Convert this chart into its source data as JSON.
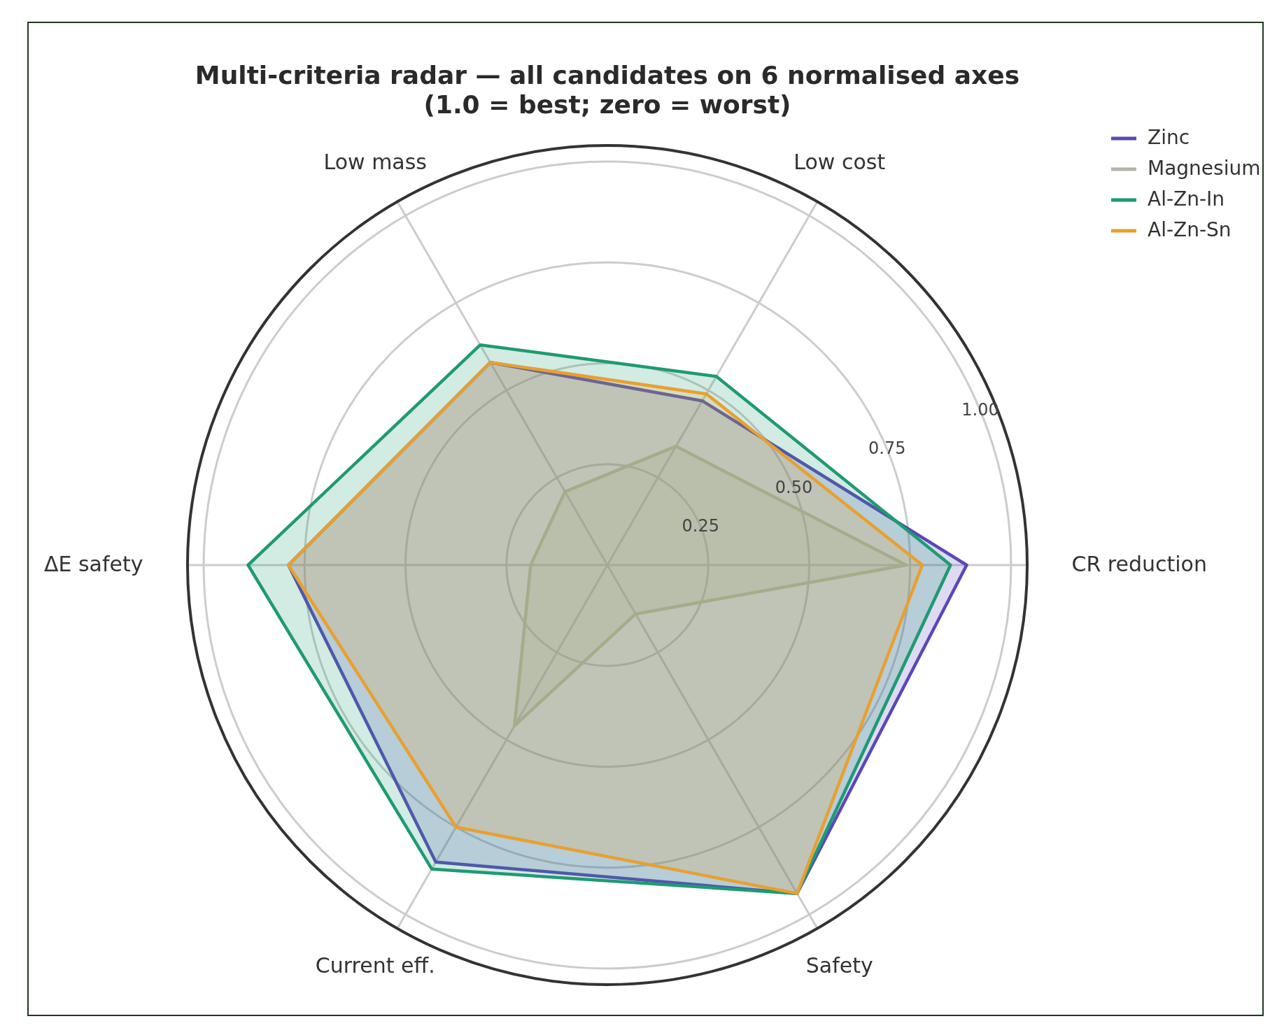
{
  "chart_data": {
    "type": "radar",
    "title": "Multi-criteria radar — all candidates on 6 normalised axes\n(1.0 = best; zero = worst)",
    "categories": [
      "Low cost",
      "CR reduction",
      "Safety",
      "Current eff.",
      "ΔE safety",
      "Low mass"
    ],
    "series": [
      {
        "name": "Zinc",
        "color": "#5a48b8",
        "values": [
          0.47,
          0.89,
          0.94,
          0.85,
          0.79,
          0.58
        ]
      },
      {
        "name": "Magnesium",
        "color": "#b4b4aa",
        "values": [
          0.34,
          0.74,
          0.14,
          0.46,
          0.19,
          0.21
        ]
      },
      {
        "name": "Al-Zn-In",
        "color": "#1f9a72",
        "values": [
          0.54,
          0.85,
          0.94,
          0.87,
          0.89,
          0.63
        ]
      },
      {
        "name": "Al-Zn-Sn",
        "color": "#e8a030",
        "values": [
          0.49,
          0.78,
          0.94,
          0.75,
          0.79,
          0.58
        ]
      }
    ],
    "ylim": [
      0,
      1.04
    ],
    "yticks": [
      0.25,
      {
        "value": 0.5,
        "label": "0.50"
      },
      0.75,
      {
        "value": 1,
        "label": "1.00"
      }
    ],
    "grid": true,
    "legend": "top right"
  }
}
